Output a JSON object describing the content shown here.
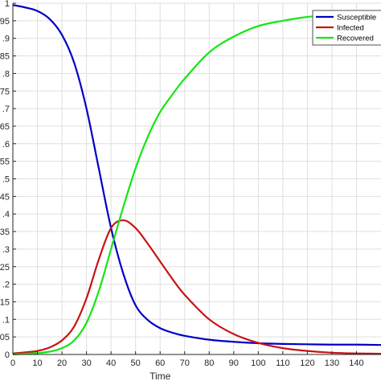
{
  "chart_data": {
    "type": "line",
    "title": "",
    "xlabel": "Time",
    "ylabel": "",
    "xlim": [
      0,
      150
    ],
    "ylim": [
      0,
      1
    ],
    "xticks": [
      "0",
      "10",
      "20",
      "30",
      "40",
      "50",
      "60",
      "70",
      "80",
      "90",
      "100",
      "110",
      "120",
      "130",
      "140"
    ],
    "yticks": [
      "0",
      ".05",
      ".1",
      ".15",
      ".2",
      ".25",
      ".3",
      ".35",
      ".4",
      ".45",
      ".5",
      ".55",
      ".6",
      ".65",
      ".7",
      ".75",
      ".8",
      ".85",
      ".9",
      ".95",
      "1"
    ],
    "grid": true,
    "legend_position": "top-right",
    "series": [
      {
        "name": "Susceptible",
        "color": "#0000c8",
        "x": [
          0,
          5,
          10,
          15,
          20,
          25,
          30,
          35,
          40,
          45,
          50,
          55,
          60,
          65,
          70,
          80,
          90,
          100,
          110,
          120,
          130,
          140,
          150
        ],
        "values": [
          0.995,
          0.988,
          0.978,
          0.955,
          0.91,
          0.83,
          0.7,
          0.53,
          0.36,
          0.23,
          0.14,
          0.098,
          0.075,
          0.062,
          0.053,
          0.042,
          0.036,
          0.032,
          0.03,
          0.029,
          0.028,
          0.028,
          0.027
        ]
      },
      {
        "name": "Infected",
        "color": "#c81414",
        "x": [
          0,
          5,
          10,
          15,
          20,
          25,
          30,
          35,
          40,
          45,
          50,
          55,
          60,
          65,
          70,
          80,
          90,
          100,
          110,
          120,
          130,
          140,
          150
        ],
        "values": [
          0.003,
          0.006,
          0.01,
          0.02,
          0.04,
          0.08,
          0.16,
          0.27,
          0.36,
          0.382,
          0.36,
          0.315,
          0.265,
          0.215,
          0.17,
          0.1,
          0.058,
          0.033,
          0.018,
          0.01,
          0.005,
          0.003,
          0.002
        ]
      },
      {
        "name": "Recovered",
        "color": "#14e614",
        "x": [
          0,
          5,
          10,
          15,
          20,
          25,
          30,
          35,
          40,
          45,
          50,
          55,
          60,
          65,
          70,
          80,
          90,
          100,
          110,
          120,
          130,
          140,
          150
        ],
        "values": [
          0.0,
          0.002,
          0.004,
          0.008,
          0.018,
          0.04,
          0.09,
          0.18,
          0.3,
          0.42,
          0.53,
          0.62,
          0.69,
          0.74,
          0.785,
          0.86,
          0.905,
          0.935,
          0.95,
          0.961,
          0.967,
          0.97,
          0.971
        ]
      }
    ]
  }
}
